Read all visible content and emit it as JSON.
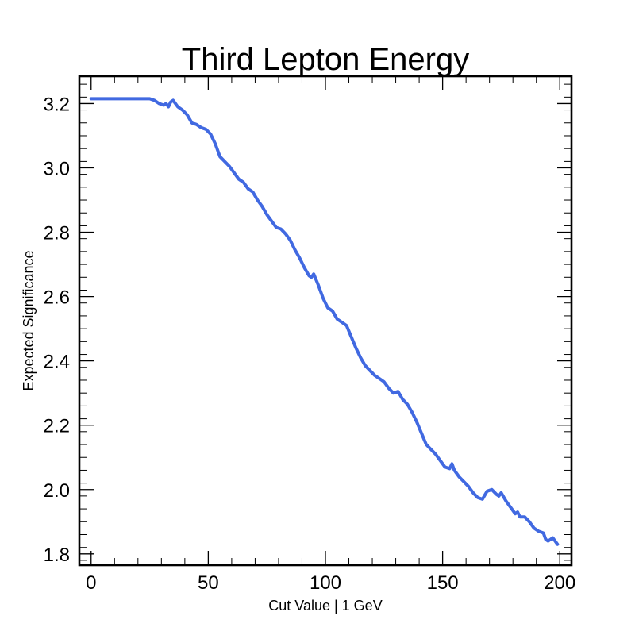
{
  "chart_data": {
    "type": "line",
    "title": "Third Lepton Energy",
    "xlabel": "Cut Value | 1 GeV",
    "ylabel": "Expected Significance",
    "xlim": [
      -5,
      205
    ],
    "ylim": [
      1.765,
      3.285
    ],
    "x_ticks": [
      0,
      50,
      100,
      150,
      200
    ],
    "x_tick_labels": [
      "0",
      "50",
      "100",
      "150",
      "200"
    ],
    "y_ticks": [
      1.8,
      2.0,
      2.2,
      2.4,
      2.6,
      2.8,
      3.0,
      3.2
    ],
    "y_tick_labels": [
      "1.8",
      "2.0",
      "2.2",
      "2.4",
      "2.6",
      "2.8",
      "3.0",
      "3.2"
    ],
    "grid": false,
    "series": [
      {
        "color": "#4169e1",
        "x": [
          0,
          5,
          10,
          15,
          20,
          25,
          27,
          29,
          31,
          32,
          33,
          34,
          35,
          37,
          39,
          41,
          43,
          45,
          47,
          49,
          51,
          53,
          55,
          57,
          59,
          61,
          63,
          65,
          67,
          69,
          71,
          73,
          75,
          77,
          79,
          81,
          83,
          85,
          87,
          89,
          91,
          93,
          94,
          95,
          97,
          99,
          101,
          103,
          105,
          107,
          109,
          111,
          113,
          115,
          117,
          119,
          121,
          123,
          125,
          127,
          129,
          131,
          133,
          135,
          137,
          139,
          141,
          143,
          145,
          147,
          149,
          151,
          153,
          154,
          155,
          157,
          159,
          161,
          163,
          165,
          167,
          169,
          171,
          173,
          174,
          175,
          177,
          179,
          181,
          182,
          183,
          185,
          187,
          189,
          191,
          193,
          194,
          195,
          197,
          199
        ],
        "y": [
          3.215,
          3.215,
          3.215,
          3.215,
          3.215,
          3.215,
          3.21,
          3.2,
          3.195,
          3.2,
          3.19,
          3.205,
          3.21,
          3.19,
          3.18,
          3.165,
          3.14,
          3.135,
          3.125,
          3.12,
          3.105,
          3.075,
          3.035,
          3.02,
          3.005,
          2.985,
          2.965,
          2.955,
          2.935,
          2.925,
          2.9,
          2.88,
          2.855,
          2.835,
          2.815,
          2.81,
          2.795,
          2.775,
          2.745,
          2.72,
          2.69,
          2.665,
          2.66,
          2.67,
          2.635,
          2.595,
          2.565,
          2.555,
          2.53,
          2.52,
          2.51,
          2.475,
          2.44,
          2.41,
          2.385,
          2.37,
          2.355,
          2.345,
          2.335,
          2.315,
          2.3,
          2.305,
          2.28,
          2.265,
          2.24,
          2.21,
          2.175,
          2.14,
          2.125,
          2.11,
          2.09,
          2.07,
          2.065,
          2.08,
          2.06,
          2.04,
          2.025,
          2.01,
          1.99,
          1.975,
          1.97,
          1.995,
          2.0,
          1.985,
          1.98,
          1.99,
          1.965,
          1.945,
          1.925,
          1.93,
          1.915,
          1.915,
          1.9,
          1.88,
          1.87,
          1.865,
          1.845,
          1.84,
          1.85,
          1.83
        ]
      }
    ]
  }
}
